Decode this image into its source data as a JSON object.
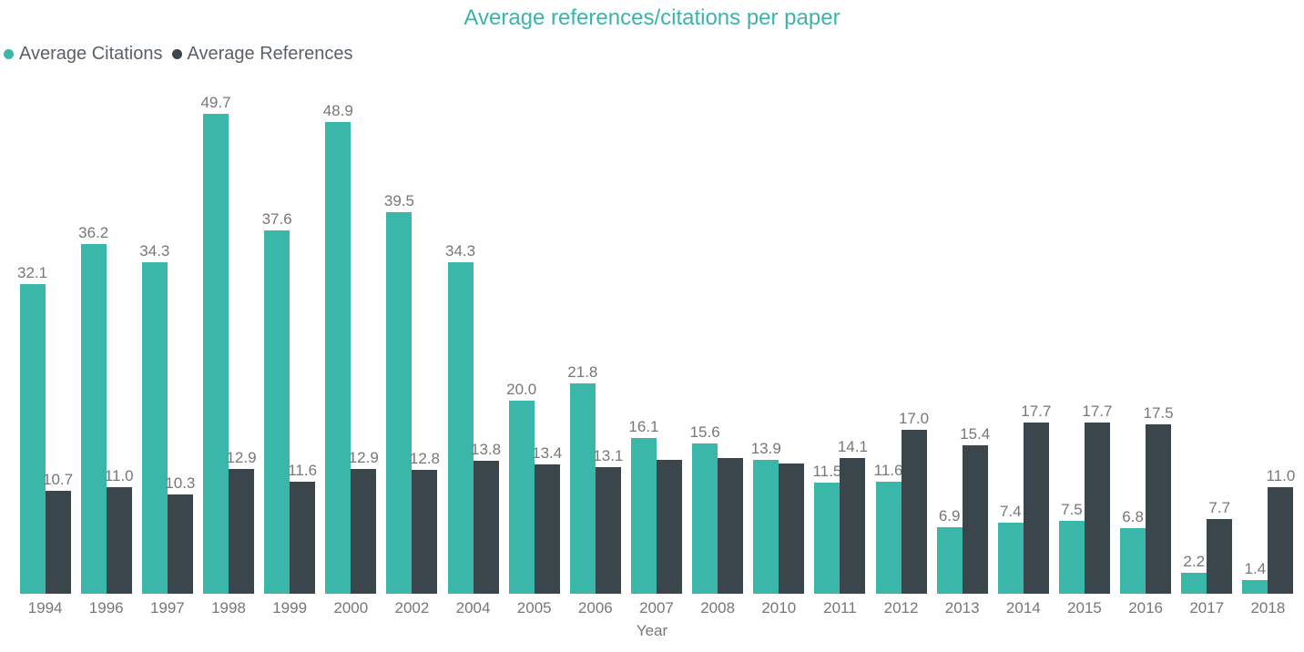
{
  "title": "Average references/citations per paper",
  "xlabel": "Year",
  "colors": {
    "citations": "#3ab7a8",
    "references": "#3a464c",
    "title_text": "#3bb4ab",
    "data_label_text": "#777777",
    "axis_text": "#777777",
    "legend_text": "#5a6166"
  },
  "chart_data": {
    "type": "bar",
    "title": "Average references/citations per paper",
    "xlabel": "Year",
    "ylabel": "",
    "ylim": [
      0,
      50
    ],
    "grid": false,
    "legend_position": "top-left",
    "data_labels": "on",
    "categories": [
      "1994",
      "1996",
      "1997",
      "1998",
      "1999",
      "2000",
      "2002",
      "2004",
      "2005",
      "2006",
      "2007",
      "2008",
      "2010",
      "2011",
      "2012",
      "2013",
      "2014",
      "2015",
      "2016",
      "2017",
      "2018"
    ],
    "series": [
      {
        "name": "Average Citations",
        "color": "#3ab7a8",
        "values": [
          32.1,
          36.2,
          34.3,
          49.7,
          37.6,
          48.9,
          39.5,
          34.3,
          20.0,
          21.8,
          16.1,
          15.6,
          13.9,
          11.5,
          11.6,
          6.9,
          7.4,
          7.5,
          6.8,
          2.2,
          1.4
        ],
        "labels": [
          "32.1",
          "36.2",
          "34.3",
          "49.7",
          "37.6",
          "48.9",
          "39.5",
          "34.3",
          "20.0",
          "21.8",
          "16.1",
          "15.6",
          "13.9",
          "11.5",
          "11.6",
          "6.9",
          "7.4",
          "7.5",
          "6.8",
          "2.2",
          "1.4"
        ]
      },
      {
        "name": "Average References",
        "color": "#3a464c",
        "values": [
          10.7,
          11.0,
          10.3,
          12.9,
          11.6,
          12.9,
          12.8,
          13.8,
          13.4,
          13.1,
          13.9,
          14.1,
          13.5,
          14.1,
          17.0,
          15.4,
          17.7,
          17.7,
          17.5,
          7.7,
          11.0
        ],
        "labels": [
          "10.7",
          "11.0",
          "10.3",
          "12.9",
          "11.6",
          "12.9",
          "12.8",
          "13.8",
          "13.4",
          "13.1",
          "",
          "",
          "",
          "14.1",
          "17.0",
          "15.4",
          "17.7",
          "17.7",
          "17.5",
          "7.7",
          "11.0"
        ]
      }
    ]
  }
}
